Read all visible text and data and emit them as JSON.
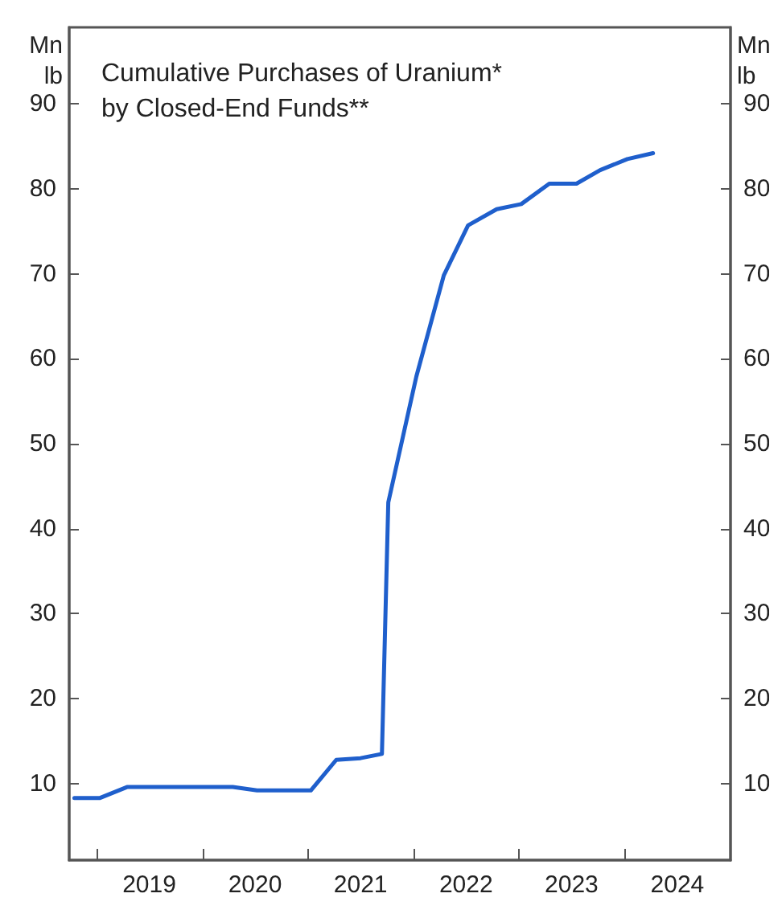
{
  "chart_data": {
    "type": "line",
    "title": "Cumulative Purchases of Uranium*\nby Closed-End Funds**",
    "ylabel": "Mn lb",
    "y2label": "Mn lb",
    "x": [
      "2018-10-15",
      "2019-01-10",
      "2019-04-15",
      "2020-04-15",
      "2020-07-08",
      "2021-01-10",
      "2021-04-08",
      "2021-07-01",
      "2021-09-13",
      "2021-10-05",
      "2022-01-10",
      "2022-04-15",
      "2022-07-08",
      "2022-10-15",
      "2023-01-08",
      "2023-04-15",
      "2023-07-18",
      "2023-10-08",
      "2024-01-10",
      "2024-04-08"
    ],
    "series": [
      {
        "color": "#1f5fcc",
        "values": [
          8.3,
          8.3,
          9.6,
          9.6,
          9.2,
          9.2,
          12.8,
          13.0,
          13.5,
          43.1,
          57.9,
          69.8,
          75.7,
          77.6,
          78.2,
          80.6,
          80.6,
          82.2,
          83.5,
          84.2
        ]
      }
    ],
    "xlim": [
      "2018-09-27",
      "2025-01-01"
    ],
    "xticks": [
      {
        "value": "2019-01-01",
        "label": null
      },
      {
        "value": "2019-07-01",
        "label": "2019"
      },
      {
        "value": "2020-01-01",
        "label": null
      },
      {
        "value": "2020-07-01",
        "label": "2020"
      },
      {
        "value": "2021-01-01",
        "label": null
      },
      {
        "value": "2021-07-01",
        "label": "2021"
      },
      {
        "value": "2022-01-01",
        "label": null
      },
      {
        "value": "2022-07-01",
        "label": "2022"
      },
      {
        "value": "2023-01-01",
        "label": null
      },
      {
        "value": "2023-07-01",
        "label": "2023"
      },
      {
        "value": "2024-01-01",
        "label": null
      },
      {
        "value": "2024-07-01",
        "label": "2024"
      }
    ],
    "ylim": [
      1,
      99
    ],
    "yticks": [
      10,
      20,
      30,
      40,
      50,
      60,
      70,
      80,
      90
    ],
    "y2lim": [
      1,
      99
    ],
    "y2ticks": [
      10,
      20,
      30,
      40,
      50,
      60,
      70,
      80,
      90
    ],
    "marker": "none",
    "line_style": "solid"
  }
}
